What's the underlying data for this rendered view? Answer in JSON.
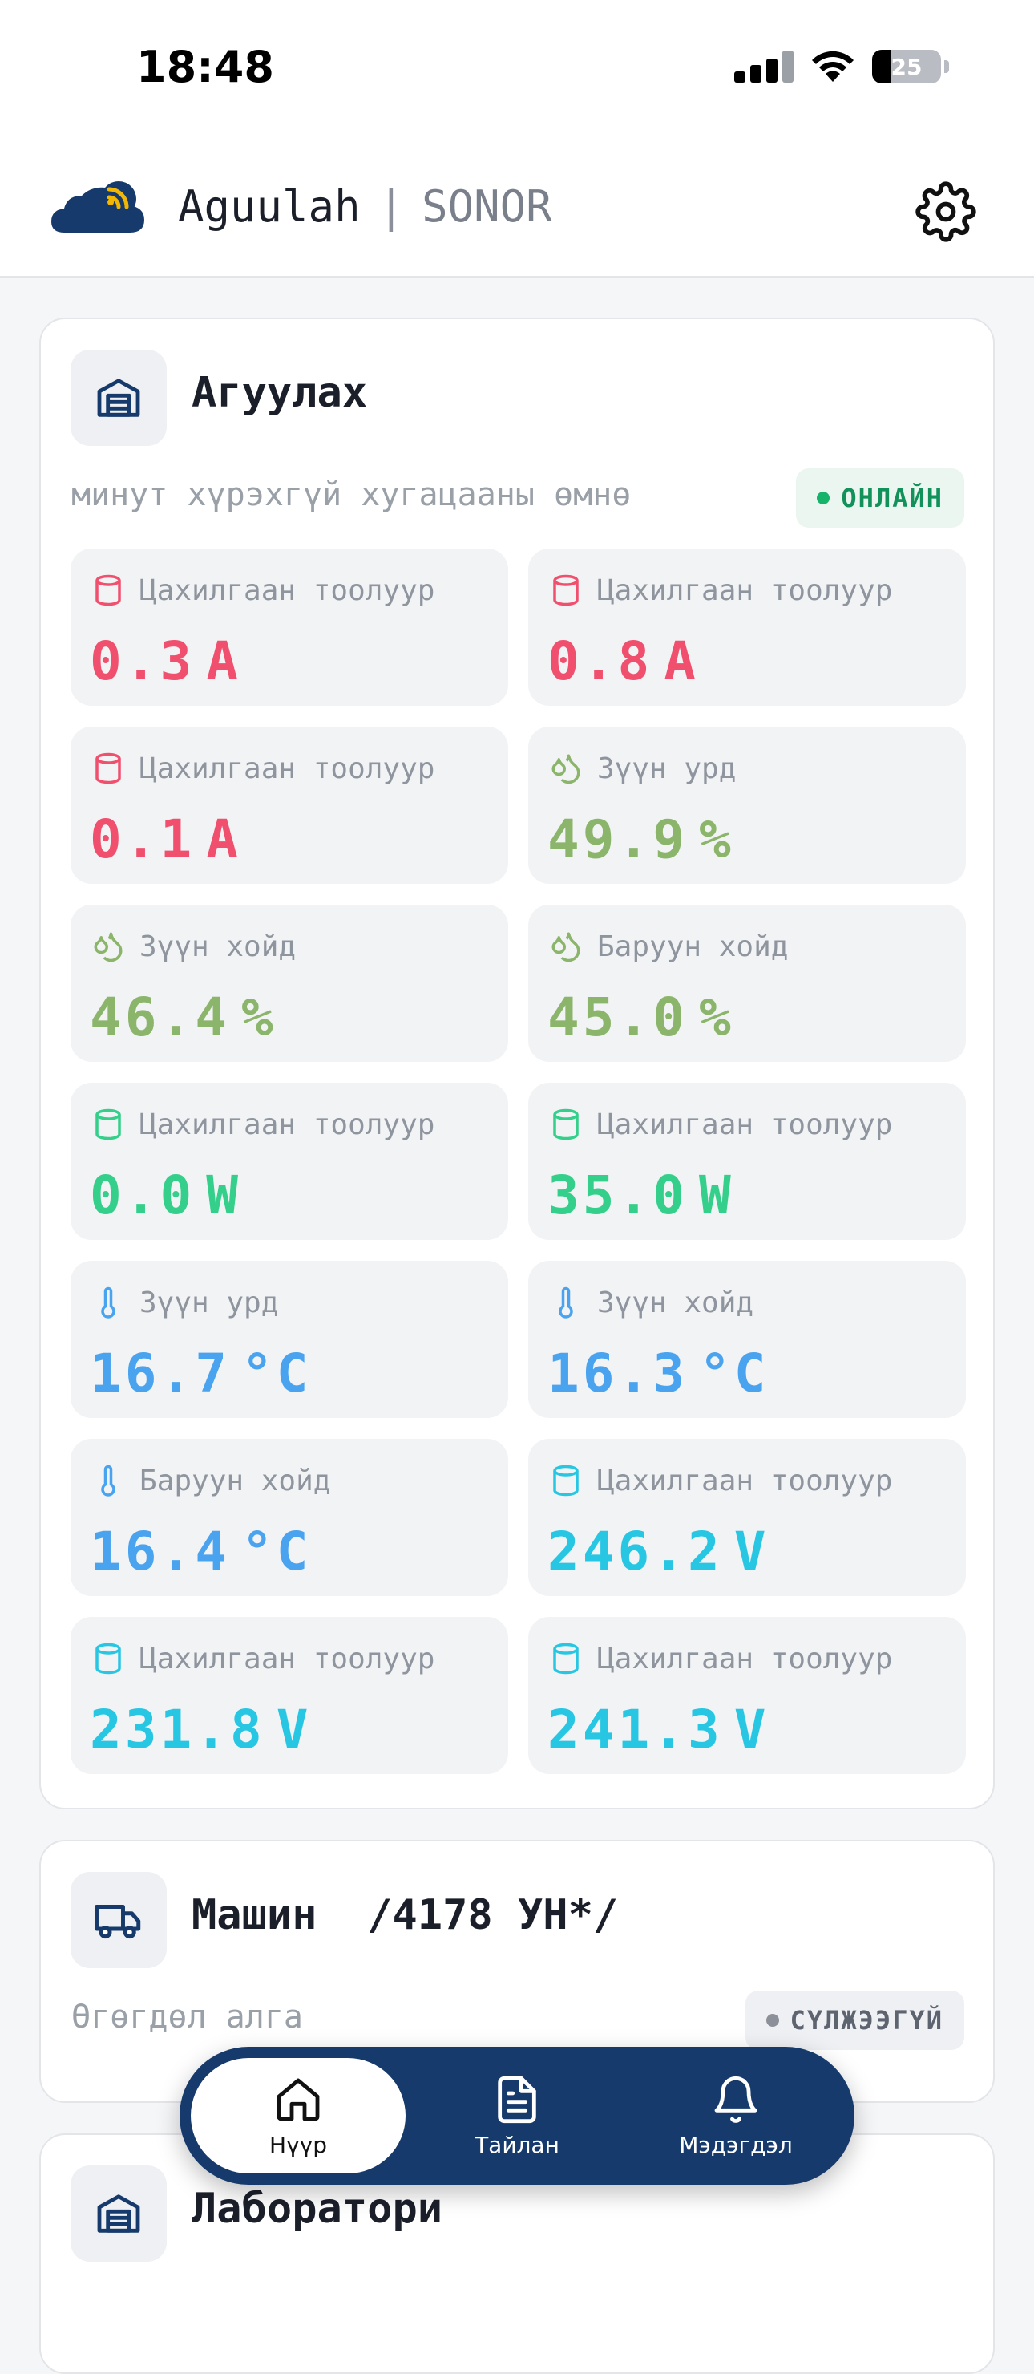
{
  "status_bar": {
    "time": "18:48",
    "battery": "25"
  },
  "header": {
    "brand_primary": "Aguulah",
    "separator": "|",
    "brand_secondary": "SONOR"
  },
  "colors": {
    "red": "#f0506e",
    "olive": "#8bb56a",
    "green": "#34cf8a",
    "blue": "#4aa3ee",
    "cyan": "#27c6e3",
    "navy": "#163a6b"
  },
  "cards": [
    {
      "title": "Агуулах",
      "icon": "warehouse-icon",
      "subtitle": "минут хүрэхгүй хугацааны өмнө",
      "status": "ОНЛАЙН",
      "tiles": [
        {
          "icon": "meter-icon",
          "color": "red",
          "label": "Цахилгаан тоолуур",
          "value": "0.3",
          "unit": "A"
        },
        {
          "icon": "meter-icon",
          "color": "red",
          "label": "Цахилгаан тоолуур",
          "value": "0.8",
          "unit": "A"
        },
        {
          "icon": "meter-icon",
          "color": "red",
          "label": "Цахилгаан тоолуур",
          "value": "0.1",
          "unit": "A"
        },
        {
          "icon": "humidity-icon",
          "color": "olive",
          "label": "Зүүн урд",
          "value": "49.9",
          "unit": "%"
        },
        {
          "icon": "humidity-icon",
          "color": "olive",
          "label": "Зүүн хойд",
          "value": "46.4",
          "unit": "%"
        },
        {
          "icon": "humidity-icon",
          "color": "olive",
          "label": "Баруун хойд",
          "value": "45.0",
          "unit": "%"
        },
        {
          "icon": "meter-icon",
          "color": "green",
          "label": "Цахилгаан тоолуур",
          "value": "0.0",
          "unit": "W"
        },
        {
          "icon": "meter-icon",
          "color": "green",
          "label": "Цахилгаан тоолуур",
          "value": "35.0",
          "unit": "W"
        },
        {
          "icon": "thermometer-icon",
          "color": "blue",
          "label": "Зүүн урд",
          "value": "16.7",
          "unit": "°C"
        },
        {
          "icon": "thermometer-icon",
          "color": "blue",
          "label": "Зүүн хойд",
          "value": "16.3",
          "unit": "°C"
        },
        {
          "icon": "thermometer-icon",
          "color": "blue",
          "label": "Баруун хойд",
          "value": "16.4",
          "unit": "°C"
        },
        {
          "icon": "meter-icon",
          "color": "cyan",
          "label": "Цахилгаан тоолуур",
          "value": "246.2",
          "unit": "V"
        },
        {
          "icon": "meter-icon",
          "color": "cyan",
          "label": "Цахилгаан тоолуур",
          "value": "231.8",
          "unit": "V"
        },
        {
          "icon": "meter-icon",
          "color": "cyan",
          "label": "Цахилгаан тоолуур",
          "value": "241.3",
          "unit": "V"
        }
      ]
    },
    {
      "title": "Машин  /4178 УН*/",
      "icon": "truck-icon",
      "subtitle": "Өгөгдөл алга",
      "status": "СҮЛЖЭЭГҮЙ"
    },
    {
      "title": "Лаборатори",
      "icon": "warehouse-icon"
    }
  ],
  "nav": [
    {
      "label": "Нүүр",
      "icon": "home-icon",
      "active": true
    },
    {
      "label": "Тайлан",
      "icon": "report-icon",
      "active": false
    },
    {
      "label": "Мэдэгдэл",
      "icon": "bell-icon",
      "active": false
    }
  ]
}
